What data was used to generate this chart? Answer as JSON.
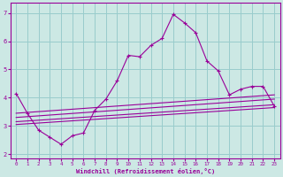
{
  "xlabel": "Windchill (Refroidissement éolien,°C)",
  "bg_color": "#cce8e4",
  "line_color": "#990099",
  "grid_color": "#99cccc",
  "xlim": [
    -0.5,
    23.5
  ],
  "ylim": [
    1.85,
    7.35
  ],
  "xticks": [
    0,
    1,
    2,
    3,
    4,
    5,
    6,
    7,
    8,
    9,
    10,
    11,
    12,
    13,
    14,
    15,
    16,
    17,
    18,
    19,
    20,
    21,
    22,
    23
  ],
  "yticks": [
    2,
    3,
    4,
    5,
    6,
    7
  ],
  "main_x": [
    0,
    1,
    2,
    3,
    4,
    5,
    6,
    7,
    8,
    9,
    10,
    11,
    12,
    13,
    14,
    15,
    16,
    17,
    18,
    19,
    20,
    21,
    22,
    23
  ],
  "main_y": [
    4.15,
    3.45,
    2.85,
    2.6,
    2.35,
    2.65,
    2.75,
    3.55,
    3.95,
    4.6,
    5.5,
    5.45,
    5.85,
    6.1,
    6.95,
    6.65,
    6.3,
    5.3,
    4.95,
    4.1,
    4.3,
    4.4,
    4.4,
    3.7
  ],
  "band_lines": [
    {
      "x": [
        0,
        23
      ],
      "y": [
        3.05,
        3.65
      ]
    },
    {
      "x": [
        0,
        23
      ],
      "y": [
        3.15,
        3.75
      ]
    },
    {
      "x": [
        0,
        23
      ],
      "y": [
        3.3,
        3.95
      ]
    },
    {
      "x": [
        0,
        23
      ],
      "y": [
        3.45,
        4.1
      ]
    }
  ]
}
